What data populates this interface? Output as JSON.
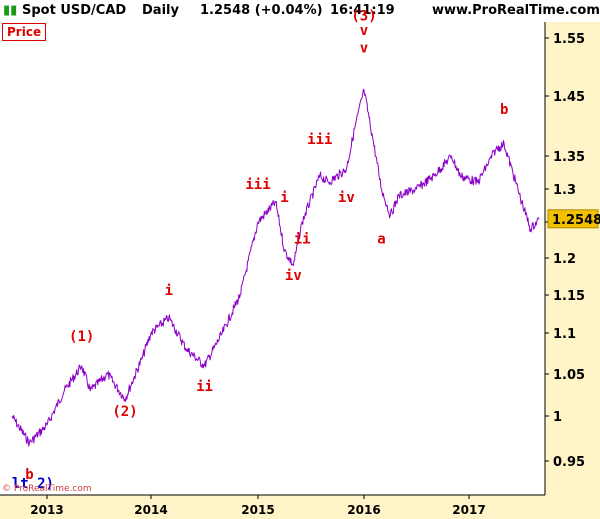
{
  "header": {
    "symbol": "Spot USD/CAD",
    "period": "Daily",
    "quote": "1.2548 (+0.04%)",
    "time": "16:41:19",
    "site": "www.ProRealTime.com"
  },
  "panel_label": "Price",
  "copyright": "© ProRealTime.com",
  "colors": {
    "price_line": "#8B00C8",
    "labels": "#e00000",
    "blue_label": "#0000cc",
    "axis_bg": "#FFF3C8",
    "last_price_bg": "#F2C200"
  },
  "chart_data": {
    "type": "line",
    "series": [
      {
        "x": [
          "2012-09",
          "2012-11",
          "2013-01",
          "2013-03",
          "2013-05",
          "2013-06",
          "2013-08",
          "2013-10",
          "2013-12",
          "2014-01",
          "2014-03",
          "2014-05",
          "2014-07",
          "2014-09",
          "2014-11",
          "2015-01",
          "2015-03",
          "2015-04",
          "2015-05",
          "2015-06",
          "2015-08",
          "2015-09",
          "2015-11",
          "2015-12",
          "2016-01",
          "2016-02",
          "2016-03",
          "2016-04",
          "2016-05",
          "2016-07",
          "2016-09",
          "2016-11",
          "2016-12",
          "2017-02",
          "2017-04",
          "2017-05",
          "2017-07",
          "2017-08",
          "2017-09"
        ],
        "values": [
          1.0,
          0.97,
          0.99,
          1.03,
          1.06,
          1.03,
          1.05,
          1.02,
          1.07,
          1.1,
          1.12,
          1.08,
          1.06,
          1.1,
          1.15,
          1.25,
          1.28,
          1.21,
          1.19,
          1.25,
          1.32,
          1.31,
          1.33,
          1.4,
          1.46,
          1.38,
          1.3,
          1.26,
          1.29,
          1.3,
          1.32,
          1.35,
          1.32,
          1.31,
          1.36,
          1.37,
          1.28,
          1.24,
          1.2548
        ]
      }
    ],
    "xticks": [
      "2013",
      "2014",
      "2015",
      "2016",
      "2017"
    ],
    "yticks": [
      "0.95",
      "1",
      "1.05",
      "1.1",
      "1.15",
      "1.2",
      "1.25",
      "1.3",
      "1.35",
      "1.45",
      "1.55"
    ],
    "last_price": "1.2548",
    "annotations": [
      {
        "text": "b",
        "x": "2012-11",
        "y": 0.93,
        "color": "red"
      },
      {
        "text": "lt 2)",
        "x": "2012-09",
        "y": 0.92,
        "color": "blue"
      },
      {
        "text": "(1)",
        "x": "2013-05",
        "y": 1.09,
        "color": "red"
      },
      {
        "text": "(2)",
        "x": "2013-10",
        "y": 1.0,
        "color": "red"
      },
      {
        "text": "i",
        "x": "2014-03",
        "y": 1.15,
        "color": "red"
      },
      {
        "text": "ii",
        "x": "2014-07",
        "y": 1.03,
        "color": "red"
      },
      {
        "text": "iii",
        "x": "2015-01",
        "y": 1.3,
        "color": "red"
      },
      {
        "text": "i",
        "x": "2015-04",
        "y": 1.28,
        "color": "red"
      },
      {
        "text": "iv",
        "x": "2015-05",
        "y": 1.17,
        "color": "red"
      },
      {
        "text": "ii",
        "x": "2015-06",
        "y": 1.22,
        "color": "red"
      },
      {
        "text": "iii",
        "x": "2015-08",
        "y": 1.37,
        "color": "red"
      },
      {
        "text": "iv",
        "x": "2015-11",
        "y": 1.28,
        "color": "red"
      },
      {
        "text": "(3)",
        "x": "2016-01",
        "y": 1.58,
        "color": "red"
      },
      {
        "text": "v",
        "x": "2016-01",
        "y": 1.555,
        "color": "red"
      },
      {
        "text": "v",
        "x": "2016-01",
        "y": 1.525,
        "color": "red"
      },
      {
        "text": "a",
        "x": "2016-03",
        "y": 1.22,
        "color": "red"
      },
      {
        "text": "b",
        "x": "2017-05",
        "y": 1.42,
        "color": "red"
      }
    ],
    "title": "",
    "xlabel": "",
    "ylabel": ""
  }
}
